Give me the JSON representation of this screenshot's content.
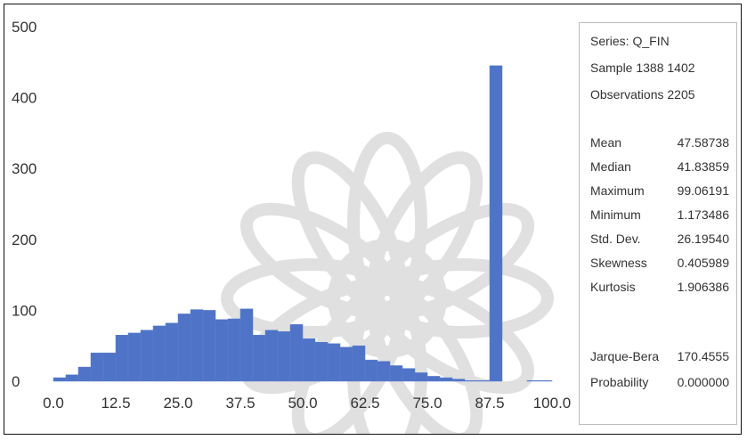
{
  "chart_data": {
    "type": "bar",
    "x_ticks": [
      "0.0",
      "12.5",
      "25.0",
      "37.5",
      "50.0",
      "62.5",
      "75.0",
      "87.5",
      "100.0"
    ],
    "y_ticks": [
      "0",
      "100",
      "200",
      "300",
      "400",
      "500"
    ],
    "xlim": [
      0,
      100
    ],
    "ylim": [
      0,
      500
    ],
    "bin_width": 2.5,
    "bins": [
      {
        "x0": 0.0,
        "value": 5
      },
      {
        "x0": 2.5,
        "value": 9
      },
      {
        "x0": 5.0,
        "value": 20
      },
      {
        "x0": 7.5,
        "value": 40
      },
      {
        "x0": 10.0,
        "value": 40
      },
      {
        "x0": 12.5,
        "value": 65
      },
      {
        "x0": 15.0,
        "value": 68
      },
      {
        "x0": 17.5,
        "value": 72
      },
      {
        "x0": 20.0,
        "value": 78
      },
      {
        "x0": 22.5,
        "value": 82
      },
      {
        "x0": 25.0,
        "value": 95
      },
      {
        "x0": 27.5,
        "value": 101
      },
      {
        "x0": 30.0,
        "value": 100
      },
      {
        "x0": 32.5,
        "value": 87
      },
      {
        "x0": 35.0,
        "value": 88
      },
      {
        "x0": 37.5,
        "value": 102
      },
      {
        "x0": 40.0,
        "value": 65
      },
      {
        "x0": 42.5,
        "value": 72
      },
      {
        "x0": 45.0,
        "value": 70
      },
      {
        "x0": 47.5,
        "value": 80
      },
      {
        "x0": 50.0,
        "value": 60
      },
      {
        "x0": 52.5,
        "value": 55
      },
      {
        "x0": 55.0,
        "value": 53
      },
      {
        "x0": 57.5,
        "value": 48
      },
      {
        "x0": 60.0,
        "value": 50
      },
      {
        "x0": 62.5,
        "value": 30
      },
      {
        "x0": 65.0,
        "value": 28
      },
      {
        "x0": 67.5,
        "value": 22
      },
      {
        "x0": 70.0,
        "value": 18
      },
      {
        "x0": 72.5,
        "value": 12
      },
      {
        "x0": 75.0,
        "value": 7
      },
      {
        "x0": 77.5,
        "value": 5
      },
      {
        "x0": 80.0,
        "value": 3
      },
      {
        "x0": 82.5,
        "value": 1
      },
      {
        "x0": 85.0,
        "value": 1
      },
      {
        "x0": 87.5,
        "value": 445
      },
      {
        "x0": 90.0,
        "value": 0
      },
      {
        "x0": 92.5,
        "value": 0
      },
      {
        "x0": 95.0,
        "value": 1
      },
      {
        "x0": 97.5,
        "value": 1
      }
    ],
    "grid": false
  },
  "stats": {
    "series": "Series: Q_FIN",
    "sample": "Sample 1388 1402",
    "observations": "Observations 2205",
    "rows": [
      {
        "label": "Mean",
        "value": "47.58738"
      },
      {
        "label": "Median",
        "value": "41.83859"
      },
      {
        "label": "Maximum",
        "value": "99.06191"
      },
      {
        "label": "Minimum",
        "value": "1.173486"
      },
      {
        "label": "Std. Dev.",
        "value": "26.19540"
      },
      {
        "label": "Skewness",
        "value": "0.405989"
      },
      {
        "label": "Kurtosis",
        "value": "1.906386"
      }
    ],
    "tests": [
      {
        "label": "Jarque-Bera",
        "value": "170.4555"
      },
      {
        "label": "Probability",
        "value": "0.000000"
      }
    ]
  },
  "colors": {
    "bar": "#4f73c6",
    "frame": "#111111",
    "watermark": "#c8c8c8"
  },
  "watermark_icon": "star-rosette-watermark-icon"
}
